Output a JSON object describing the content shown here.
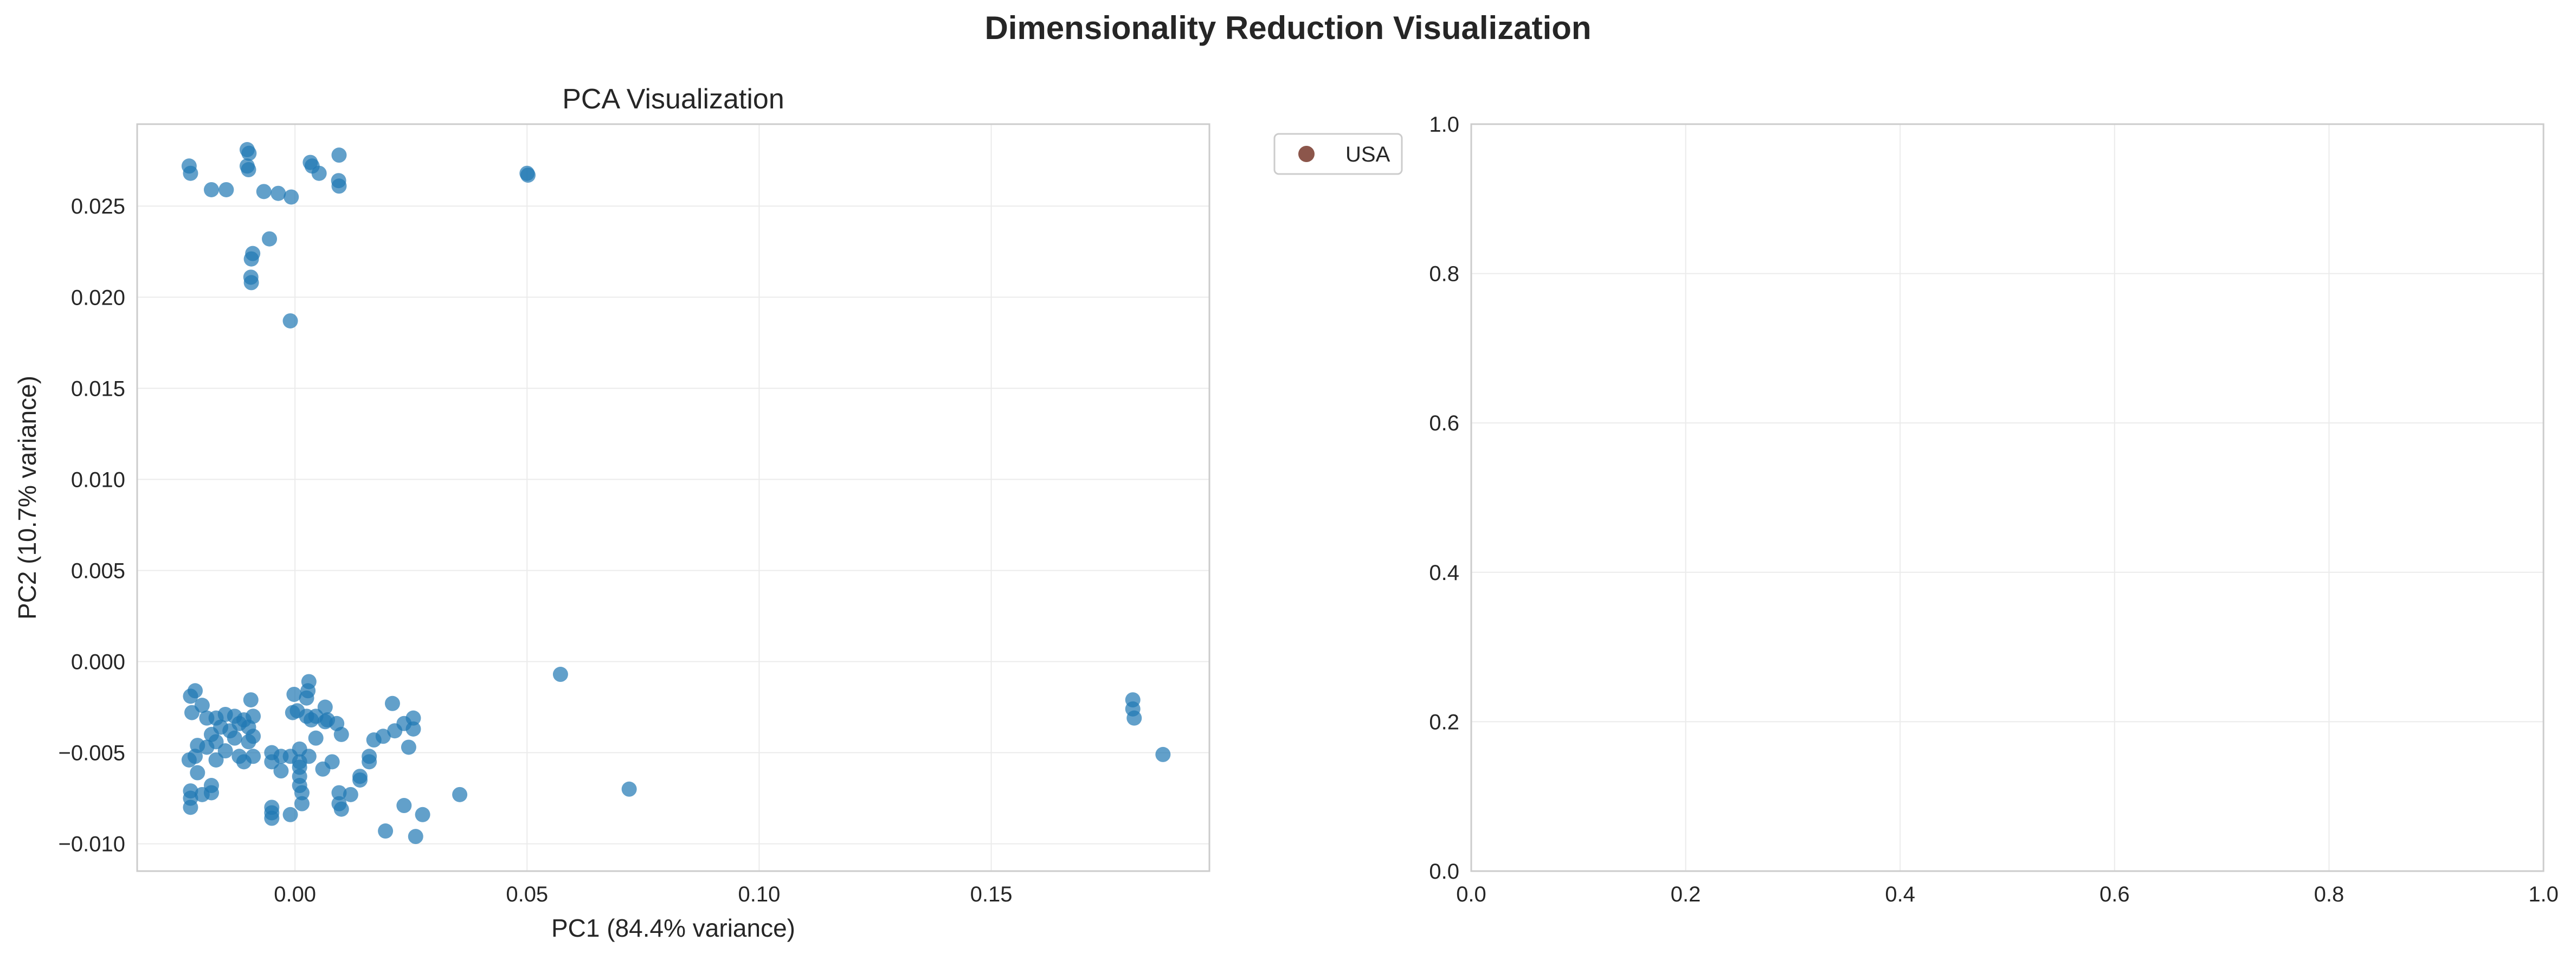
{
  "figure": {
    "title": "Dimensionality Reduction Visualization"
  },
  "chart_data": [
    {
      "type": "scatter",
      "title": "PCA Visualization",
      "xlabel": "PC1 (84.4% variance)",
      "ylabel": "PC2 (10.7% variance)",
      "xlim": [
        -0.034,
        0.197
      ],
      "ylim": [
        -0.0115,
        0.0295
      ],
      "xticks": [
        0.0,
        0.05,
        0.1,
        0.15
      ],
      "xtick_labels": [
        "0.00",
        "0.05",
        "0.10",
        "0.15"
      ],
      "yticks": [
        -0.01,
        -0.005,
        0.0,
        0.005,
        0.01,
        0.015,
        0.02,
        0.025
      ],
      "ytick_labels": [
        "−0.010",
        "−0.005",
        "0.000",
        "0.005",
        "0.010",
        "0.015",
        "0.020",
        "0.025"
      ],
      "grid": true,
      "point_color": "#1f77b4",
      "series": [
        {
          "name": "",
          "points": [
            [
              -0.0228,
              0.0272
            ],
            [
              -0.0225,
              0.0268
            ],
            [
              -0.0103,
              0.0281
            ],
            [
              -0.0099,
              0.0279
            ],
            [
              -0.0103,
              0.0272
            ],
            [
              -0.01,
              0.027
            ],
            [
              0.0033,
              0.0274
            ],
            [
              0.0037,
              0.0272
            ],
            [
              0.0052,
              0.0268
            ],
            [
              0.0095,
              0.0278
            ],
            [
              0.0094,
              0.0264
            ],
            [
              0.0095,
              0.0261
            ],
            [
              0.05,
              0.0268
            ],
            [
              0.0502,
              0.0267
            ],
            [
              -0.018,
              0.0259
            ],
            [
              -0.0148,
              0.0259
            ],
            [
              -0.0067,
              0.0258
            ],
            [
              -0.0036,
              0.0257
            ],
            [
              -0.0008,
              0.0255
            ],
            [
              -0.0055,
              0.0232
            ],
            [
              -0.0091,
              0.0224
            ],
            [
              -0.0094,
              0.0221
            ],
            [
              -0.0095,
              0.0211
            ],
            [
              -0.0094,
              0.0208
            ],
            [
              -0.001,
              0.0187
            ],
            [
              0.0572,
              -0.0007
            ],
            [
              0.1805,
              -0.0021
            ],
            [
              0.1805,
              -0.0026
            ],
            [
              0.1808,
              -0.0031
            ],
            [
              0.187,
              -0.0051
            ],
            [
              0.072,
              -0.007
            ],
            [
              0.003,
              -0.0011
            ],
            [
              0.0028,
              -0.0016
            ],
            [
              0.0025,
              -0.002
            ],
            [
              -0.0215,
              -0.0016
            ],
            [
              -0.0225,
              -0.0019
            ],
            [
              -0.0095,
              -0.0021
            ],
            [
              -0.0002,
              -0.0018
            ],
            [
              -0.02,
              -0.0024
            ],
            [
              -0.0222,
              -0.0028
            ],
            [
              -0.019,
              -0.0031
            ],
            [
              -0.017,
              -0.0031
            ],
            [
              -0.015,
              -0.0029
            ],
            [
              -0.013,
              -0.003
            ],
            [
              -0.011,
              -0.0032
            ],
            [
              -0.009,
              -0.003
            ],
            [
              -0.012,
              -0.0034
            ],
            [
              -0.016,
              -0.0036
            ],
            [
              -0.014,
              -0.0038
            ],
            [
              -0.01,
              -0.0036
            ],
            [
              -0.018,
              -0.004
            ],
            [
              -0.013,
              -0.0042
            ],
            [
              -0.01,
              -0.0044
            ],
            [
              -0.009,
              -0.0041
            ],
            [
              -0.021,
              -0.0046
            ],
            [
              -0.019,
              -0.0047
            ],
            [
              -0.017,
              -0.0044
            ],
            [
              -0.015,
              -0.0049
            ],
            [
              -0.012,
              -0.0052
            ],
            [
              -0.011,
              -0.0055
            ],
            [
              -0.009,
              -0.0052
            ],
            [
              -0.017,
              -0.0054
            ],
            [
              -0.0215,
              -0.0052
            ],
            [
              -0.0228,
              -0.0054
            ],
            [
              -0.021,
              -0.0061
            ],
            [
              -0.0225,
              -0.0071
            ],
            [
              -0.0225,
              -0.0075
            ],
            [
              -0.0225,
              -0.008
            ],
            [
              -0.02,
              -0.0073
            ],
            [
              -0.018,
              -0.0068
            ],
            [
              -0.018,
              -0.0072
            ],
            [
              -0.005,
              -0.005
            ],
            [
              -0.003,
              -0.0052
            ],
            [
              -0.005,
              -0.0055
            ],
            [
              -0.003,
              -0.006
            ],
            [
              -0.005,
              -0.008
            ],
            [
              -0.005,
              -0.0083
            ],
            [
              -0.005,
              -0.0086
            ],
            [
              -0.001,
              -0.0084
            ],
            [
              -0.001,
              -0.0052
            ],
            [
              0.001,
              -0.0048
            ],
            [
              0.001,
              -0.0055
            ],
            [
              0.001,
              -0.0058
            ],
            [
              0.001,
              -0.0063
            ],
            [
              0.001,
              -0.0068
            ],
            [
              0.0015,
              -0.0072
            ],
            [
              0.0015,
              -0.0078
            ],
            [
              -0.0005,
              -0.0028
            ],
            [
              0.0005,
              -0.0027
            ],
            [
              0.0025,
              -0.003
            ],
            [
              0.0035,
              -0.0032
            ],
            [
              0.0045,
              -0.003
            ],
            [
              0.0065,
              -0.0025
            ],
            [
              0.0065,
              -0.0033
            ],
            [
              0.0045,
              -0.0042
            ],
            [
              0.007,
              -0.0032
            ],
            [
              0.009,
              -0.0034
            ],
            [
              0.01,
              -0.004
            ],
            [
              0.003,
              -0.0052
            ],
            [
              0.008,
              -0.0055
            ],
            [
              0.006,
              -0.0059
            ],
            [
              0.0095,
              -0.0072
            ],
            [
              0.0095,
              -0.0078
            ],
            [
              0.012,
              -0.0073
            ],
            [
              0.01,
              -0.0081
            ],
            [
              0.014,
              -0.0065
            ],
            [
              0.016,
              -0.0052
            ],
            [
              0.016,
              -0.0055
            ],
            [
              0.014,
              -0.0063
            ],
            [
              0.017,
              -0.0043
            ],
            [
              0.019,
              -0.0041
            ],
            [
              0.021,
              -0.0023
            ],
            [
              0.0215,
              -0.0038
            ],
            [
              0.0235,
              -0.0034
            ],
            [
              0.0255,
              -0.0031
            ],
            [
              0.0255,
              -0.0037
            ],
            [
              0.0245,
              -0.0047
            ],
            [
              0.0195,
              -0.0093
            ],
            [
              0.0235,
              -0.0079
            ],
            [
              0.0275,
              -0.0084
            ],
            [
              0.026,
              -0.0096
            ],
            [
              0.0355,
              -0.0073
            ]
          ]
        }
      ]
    },
    {
      "type": "scatter",
      "title": "",
      "xlabel": "",
      "ylabel": "",
      "xlim": [
        0.0,
        1.0
      ],
      "ylim": [
        0.0,
        1.0
      ],
      "xticks": [
        0.0,
        0.2,
        0.4,
        0.6,
        0.8,
        1.0
      ],
      "xtick_labels": [
        "0.0",
        "0.2",
        "0.4",
        "0.6",
        "0.8",
        "1.0"
      ],
      "yticks": [
        0.0,
        0.2,
        0.4,
        0.6,
        0.8,
        1.0
      ],
      "ytick_labels": [
        "0.0",
        "0.2",
        "0.4",
        "0.6",
        "0.8",
        "1.0"
      ],
      "grid": true,
      "legend": {
        "placement": "upper-left-outside",
        "entries": [
          {
            "label": "USA",
            "color": "#8c564b"
          }
        ]
      },
      "series": []
    }
  ]
}
